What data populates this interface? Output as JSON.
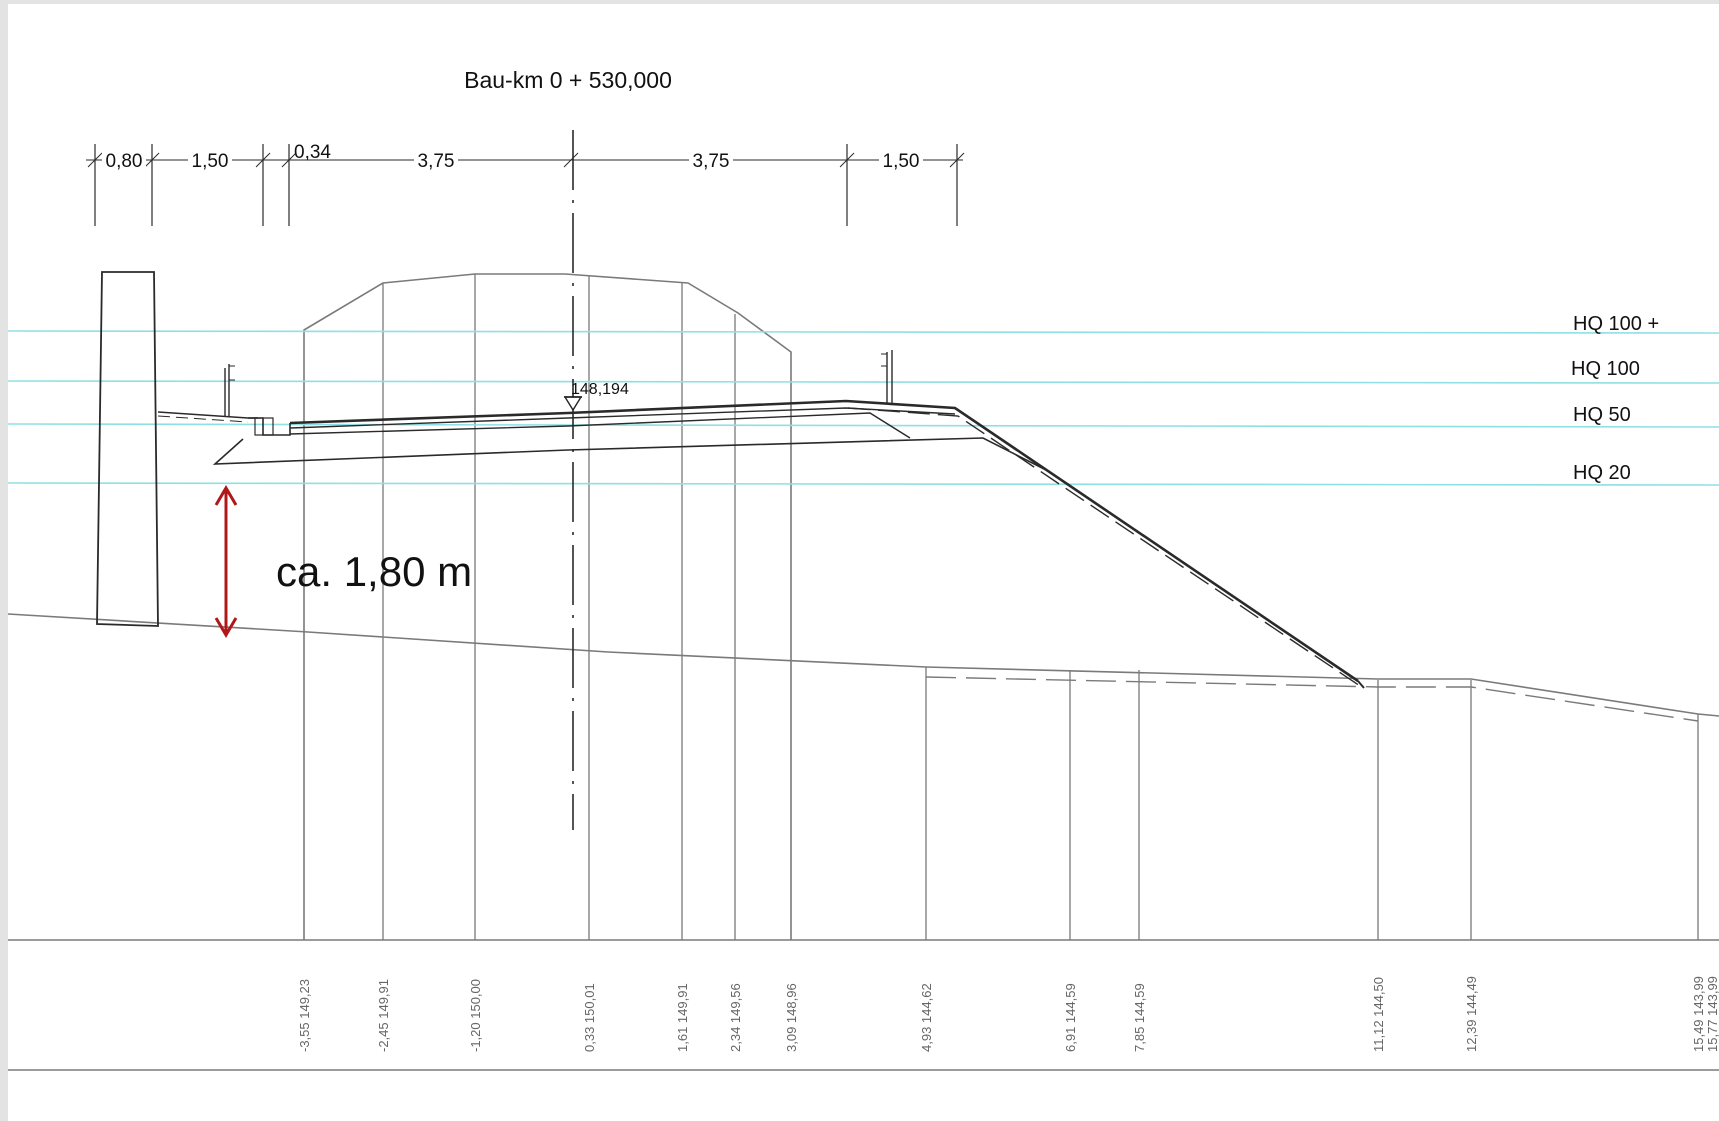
{
  "title": "Bau-km 0 + 530,000",
  "dimensions": [
    "0,80",
    "1,50",
    "0,34",
    "3,75",
    "3,75",
    "1,50"
  ],
  "elevation_marker": "148,194",
  "water_levels": [
    "HQ 100 +",
    "HQ 100",
    "HQ 50",
    "HQ 20"
  ],
  "annotation": "ca. 1,80 m",
  "stations": [
    "-3,55  149,23",
    "-2,45  149,91",
    "-1,20  150,00",
    "0,33  150,01",
    "1,61  149,91",
    "2,34  149,56",
    "3,09  148,96",
    "4,93  144,62",
    "6,91  144,59",
    "7,85  144,59",
    "11,12  144,50",
    "12,39  144,49",
    "15,49  143,99",
    "15,77  143,99"
  ],
  "colors": {
    "water": "#8fe0e4",
    "arrow": "#b01818",
    "ink": "#2a2a2a"
  }
}
